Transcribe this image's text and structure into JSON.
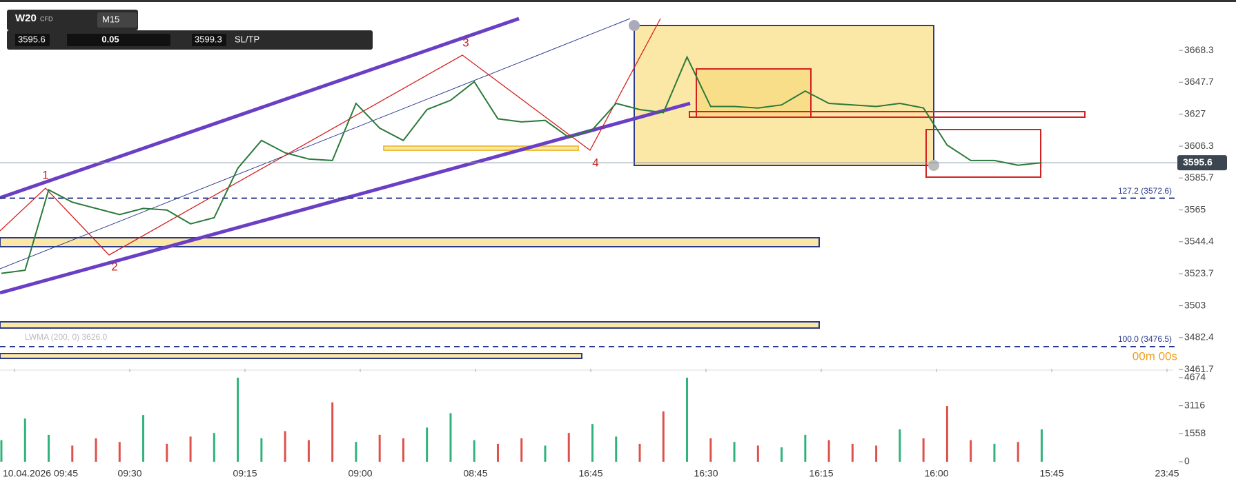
{
  "toolbar": {
    "symbol": "W20",
    "instrument_type": "CFD",
    "timeframe": "M15",
    "bid": "3595.6",
    "lot": "0.05",
    "ask": "3599.3",
    "sl_tp": "SL/TP"
  },
  "annotations": [
    "1",
    "2",
    "3",
    "4"
  ],
  "indicator_legend": [
    "LWMA (200, 0) 3626.0"
  ],
  "countdown": "00m 00s",
  "chart_data": {
    "type": "line",
    "color": "#2a7a3a",
    "values": [
      3524,
      3526,
      3578,
      3570,
      3566,
      3562,
      3566,
      3565,
      3556,
      3560,
      3592,
      3610,
      3602,
      3598,
      3597,
      3634,
      3618,
      3610,
      3630,
      3636,
      3648,
      3624,
      3622,
      3623,
      3612,
      3617,
      3634,
      3630,
      3628,
      3664,
      3632,
      3632,
      3631,
      3633,
      3642,
      3634,
      3633,
      3632,
      3634,
      3631,
      3607,
      3597,
      3597,
      3594,
      3595.6
    ],
    "ylim": [
      3460,
      3692
    ],
    "yticks": [
      3668.3,
      3647.7,
      3627.0,
      3606.3,
      3585.7,
      3565.0,
      3544.4,
      3523.7,
      3503.0,
      3482.4,
      3461.7
    ],
    "current_price": 3595.6,
    "levels": [
      {
        "value": 3572.6,
        "label": "127.2 (3572.6)"
      },
      {
        "value": 3476.5,
        "label": "100.0 (3476.5)"
      }
    ],
    "volume": {
      "values": [
        1200,
        2400,
        1500,
        900,
        1300,
        1100,
        2600,
        1000,
        1400,
        1600,
        4674,
        1300,
        1700,
        1200,
        3300,
        1100,
        1500,
        1300,
        1900,
        2700,
        1200,
        1000,
        1300,
        900,
        1600,
        2100,
        1400,
        1000,
        2800,
        4674,
        1300,
        1100,
        900,
        800,
        1500,
        1200,
        1000,
        900,
        1800,
        1300,
        3100,
        1200,
        1000,
        1100,
        1800
      ],
      "ylim": [
        0,
        4674
      ],
      "yticks": [
        4674,
        3116,
        1558,
        0
      ]
    },
    "x_labels": [
      "10.04.2026 09:45",
      "09:30",
      "09:15",
      "09:00",
      "08:45",
      "16:45",
      "16:30",
      "16:15",
      "16:00",
      "15:45",
      "23:45"
    ]
  }
}
